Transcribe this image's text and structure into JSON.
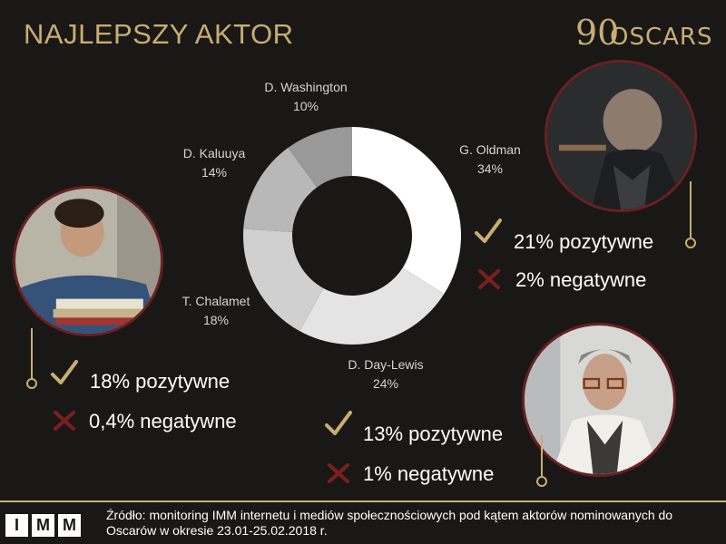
{
  "header": {
    "title": "NAJLEPSZY AKTOR",
    "logo_number": "90",
    "logo_text": "OSCARS"
  },
  "chart_data": {
    "type": "pie",
    "title": "NAJLEPSZY AKTOR",
    "categories": [
      "G. Oldman",
      "D. Day-Lewis",
      "T. Chalamet",
      "D. Kaluuya",
      "D. Washington"
    ],
    "values": [
      34,
      24,
      18,
      14,
      10
    ],
    "value_labels": [
      "34%",
      "24%",
      "18%",
      "14%",
      "10%"
    ],
    "colors": [
      "#ffffff",
      "#e4e4e4",
      "#d0d0d0",
      "#b8b8b8",
      "#999999"
    ],
    "hole": true
  },
  "actors": {
    "oldman": {
      "positive": "21% pozytywne",
      "negative": "2% negatywne"
    },
    "chalamet": {
      "positive": "18% pozytywne",
      "negative": "0,4% negatywne"
    },
    "daylewis": {
      "positive": "13% pozytywne",
      "negative": "1% negatywne"
    }
  },
  "footer": {
    "logo_letters": [
      "I",
      "M",
      "M"
    ],
    "source": "Źródło: monitoring IMM internetu i mediów społecznościowych pod kątem aktorów nominowanych do Oscarów w okresie 23.01-25.02.2018 r."
  },
  "colors": {
    "gold": "#c9ad72",
    "background": "#1a1816",
    "cross": "#7a1f1f",
    "photo_border": "#6b2020"
  },
  "icons": [
    "check-icon",
    "cross-icon",
    "oscar-statuette-icon"
  ]
}
